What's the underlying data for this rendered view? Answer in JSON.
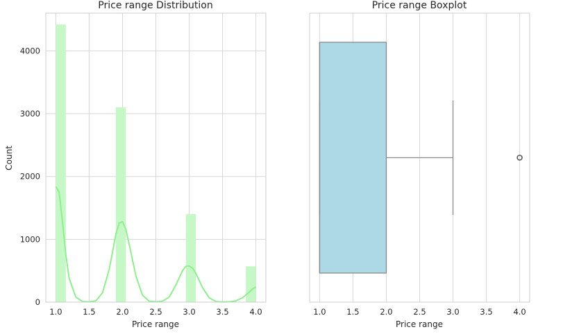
{
  "chart_data": [
    {
      "type": "bar",
      "title": "Price range Distribution",
      "xlabel": "Price range",
      "ylabel": "Count",
      "xlim": [
        0.85,
        4.15
      ],
      "ylim": [
        0,
        4600
      ],
      "xticks": [
        1.0,
        1.5,
        2.0,
        2.5,
        3.0,
        3.5,
        4.0
      ],
      "xtick_labels": [
        "1.0",
        "1.5",
        "2.0",
        "2.5",
        "3.0",
        "3.5",
        "4.0"
      ],
      "yticks": [
        0,
        1000,
        2000,
        3000,
        4000
      ],
      "ytick_labels": [
        "0",
        "1000",
        "2000",
        "3000",
        "4000"
      ],
      "grid": true,
      "bar_color": "#c6f7c6",
      "kde_color": "#90ee90",
      "bars": [
        {
          "x0": 1.0,
          "x1": 1.15,
          "value": 4420
        },
        {
          "x0": 1.9,
          "x1": 2.05,
          "value": 3100
        },
        {
          "x0": 2.95,
          "x1": 3.1,
          "value": 1400
        },
        {
          "x0": 3.85,
          "x1": 4.0,
          "value": 570
        }
      ],
      "kde": {
        "x": [
          1.0,
          1.05,
          1.1,
          1.15,
          1.2,
          1.3,
          1.4,
          1.5,
          1.6,
          1.7,
          1.8,
          1.9,
          1.95,
          2.0,
          2.05,
          2.1,
          2.2,
          2.3,
          2.4,
          2.5,
          2.6,
          2.7,
          2.8,
          2.9,
          2.95,
          3.0,
          3.05,
          3.1,
          3.2,
          3.3,
          3.4,
          3.5,
          3.6,
          3.7,
          3.8,
          3.9,
          3.95,
          4.0
        ],
        "y": [
          1840,
          1750,
          1280,
          760,
          380,
          80,
          10,
          5,
          20,
          150,
          520,
          1080,
          1260,
          1280,
          1160,
          920,
          420,
          110,
          15,
          5,
          15,
          80,
          270,
          500,
          570,
          575,
          540,
          460,
          230,
          70,
          10,
          3,
          5,
          20,
          70,
          160,
          210,
          240
        ]
      }
    },
    {
      "type": "boxplot",
      "title": "Price range Boxplot",
      "xlabel": "Price range",
      "xlim": [
        0.85,
        4.15
      ],
      "xticks": [
        1.0,
        1.5,
        2.0,
        2.5,
        3.0,
        3.5,
        4.0
      ],
      "xtick_labels": [
        "1.0",
        "1.5",
        "2.0",
        "2.5",
        "3.0",
        "3.5",
        "4.0"
      ],
      "grid": true,
      "box_color": "#add8e6",
      "min": 1.0,
      "q1": 1.0,
      "median": 1.0,
      "q3": 2.0,
      "whisker_low": 1.0,
      "whisker_high": 3.0,
      "outliers": [
        4.0
      ]
    }
  ]
}
